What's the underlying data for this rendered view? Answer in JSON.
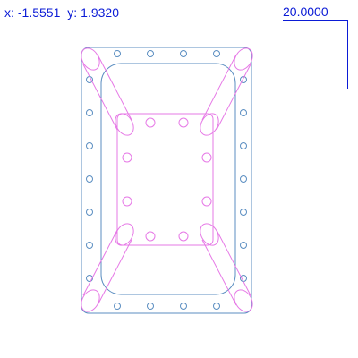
{
  "readout": {
    "x_label": "x:",
    "x_value": "-1.5551",
    "y_label": "y:",
    "y_value": "1.9320"
  },
  "scale": {
    "value": "20.0000"
  },
  "colors": {
    "outline": "#5b8ec1",
    "highlight": "#e679e6",
    "text": "#0b1bd6"
  }
}
